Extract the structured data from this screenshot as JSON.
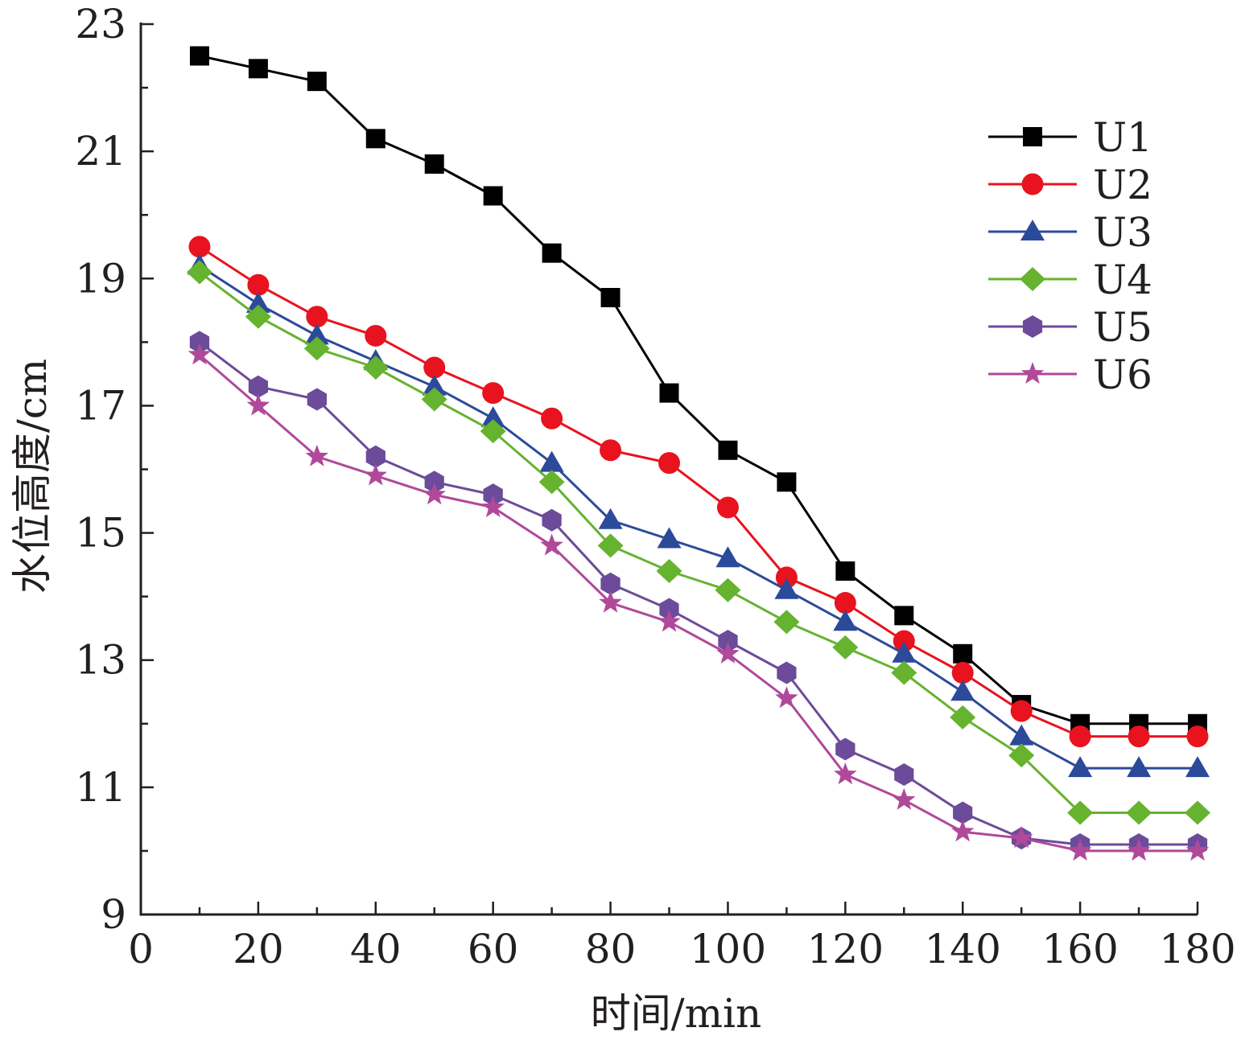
{
  "chart_data": {
    "type": "line",
    "title": "",
    "xlabel": "时间/min",
    "ylabel": "水位高度/cm",
    "xlim": [
      0,
      180
    ],
    "ylim": [
      9,
      23
    ],
    "xticks": [
      0,
      20,
      40,
      60,
      80,
      100,
      120,
      140,
      160,
      180
    ],
    "yticks": [
      9,
      11,
      13,
      15,
      17,
      19,
      21,
      23
    ],
    "grid": false,
    "legend_position": "top-right",
    "x": [
      10,
      20,
      30,
      40,
      50,
      60,
      70,
      80,
      90,
      100,
      110,
      120,
      130,
      140,
      150,
      160,
      170,
      180
    ],
    "series": [
      {
        "name": "U1",
        "color": "#000000",
        "marker": "square",
        "values": [
          22.5,
          22.3,
          22.1,
          21.2,
          20.8,
          20.3,
          19.4,
          18.7,
          17.2,
          16.3,
          15.8,
          14.4,
          13.7,
          13.1,
          12.3,
          12.0,
          12.0,
          12.0
        ]
      },
      {
        "name": "U2",
        "color": "#e8131e",
        "marker": "circle",
        "values": [
          19.5,
          18.9,
          18.4,
          18.1,
          17.6,
          17.2,
          16.8,
          16.3,
          16.1,
          15.4,
          14.3,
          13.9,
          13.3,
          12.8,
          12.2,
          11.8,
          11.8,
          11.8
        ]
      },
      {
        "name": "U3",
        "color": "#2c4a9a",
        "marker": "triangle",
        "values": [
          19.2,
          18.6,
          18.1,
          17.7,
          17.3,
          16.8,
          16.1,
          15.2,
          14.9,
          14.6,
          14.1,
          13.6,
          13.1,
          12.5,
          11.8,
          11.3,
          11.3,
          11.3
        ]
      },
      {
        "name": "U4",
        "color": "#65b32e",
        "marker": "diamond",
        "values": [
          19.1,
          18.4,
          17.9,
          17.6,
          17.1,
          16.6,
          15.8,
          14.8,
          14.4,
          14.1,
          13.6,
          13.2,
          12.8,
          12.1,
          11.5,
          10.6,
          10.6,
          10.6
        ]
      },
      {
        "name": "U5",
        "color": "#6c4b9a",
        "marker": "hexagon",
        "values": [
          18.0,
          17.3,
          17.1,
          16.2,
          15.8,
          15.6,
          15.2,
          14.2,
          13.8,
          13.3,
          12.8,
          11.6,
          11.2,
          10.6,
          10.2,
          10.1,
          10.1,
          10.1
        ]
      },
      {
        "name": "U6",
        "color": "#b0499a",
        "marker": "star",
        "values": [
          17.8,
          17.0,
          16.2,
          15.9,
          15.6,
          15.4,
          14.8,
          13.9,
          13.6,
          13.1,
          12.4,
          11.2,
          10.8,
          10.3,
          10.2,
          10.0,
          10.0,
          10.0
        ]
      }
    ]
  }
}
